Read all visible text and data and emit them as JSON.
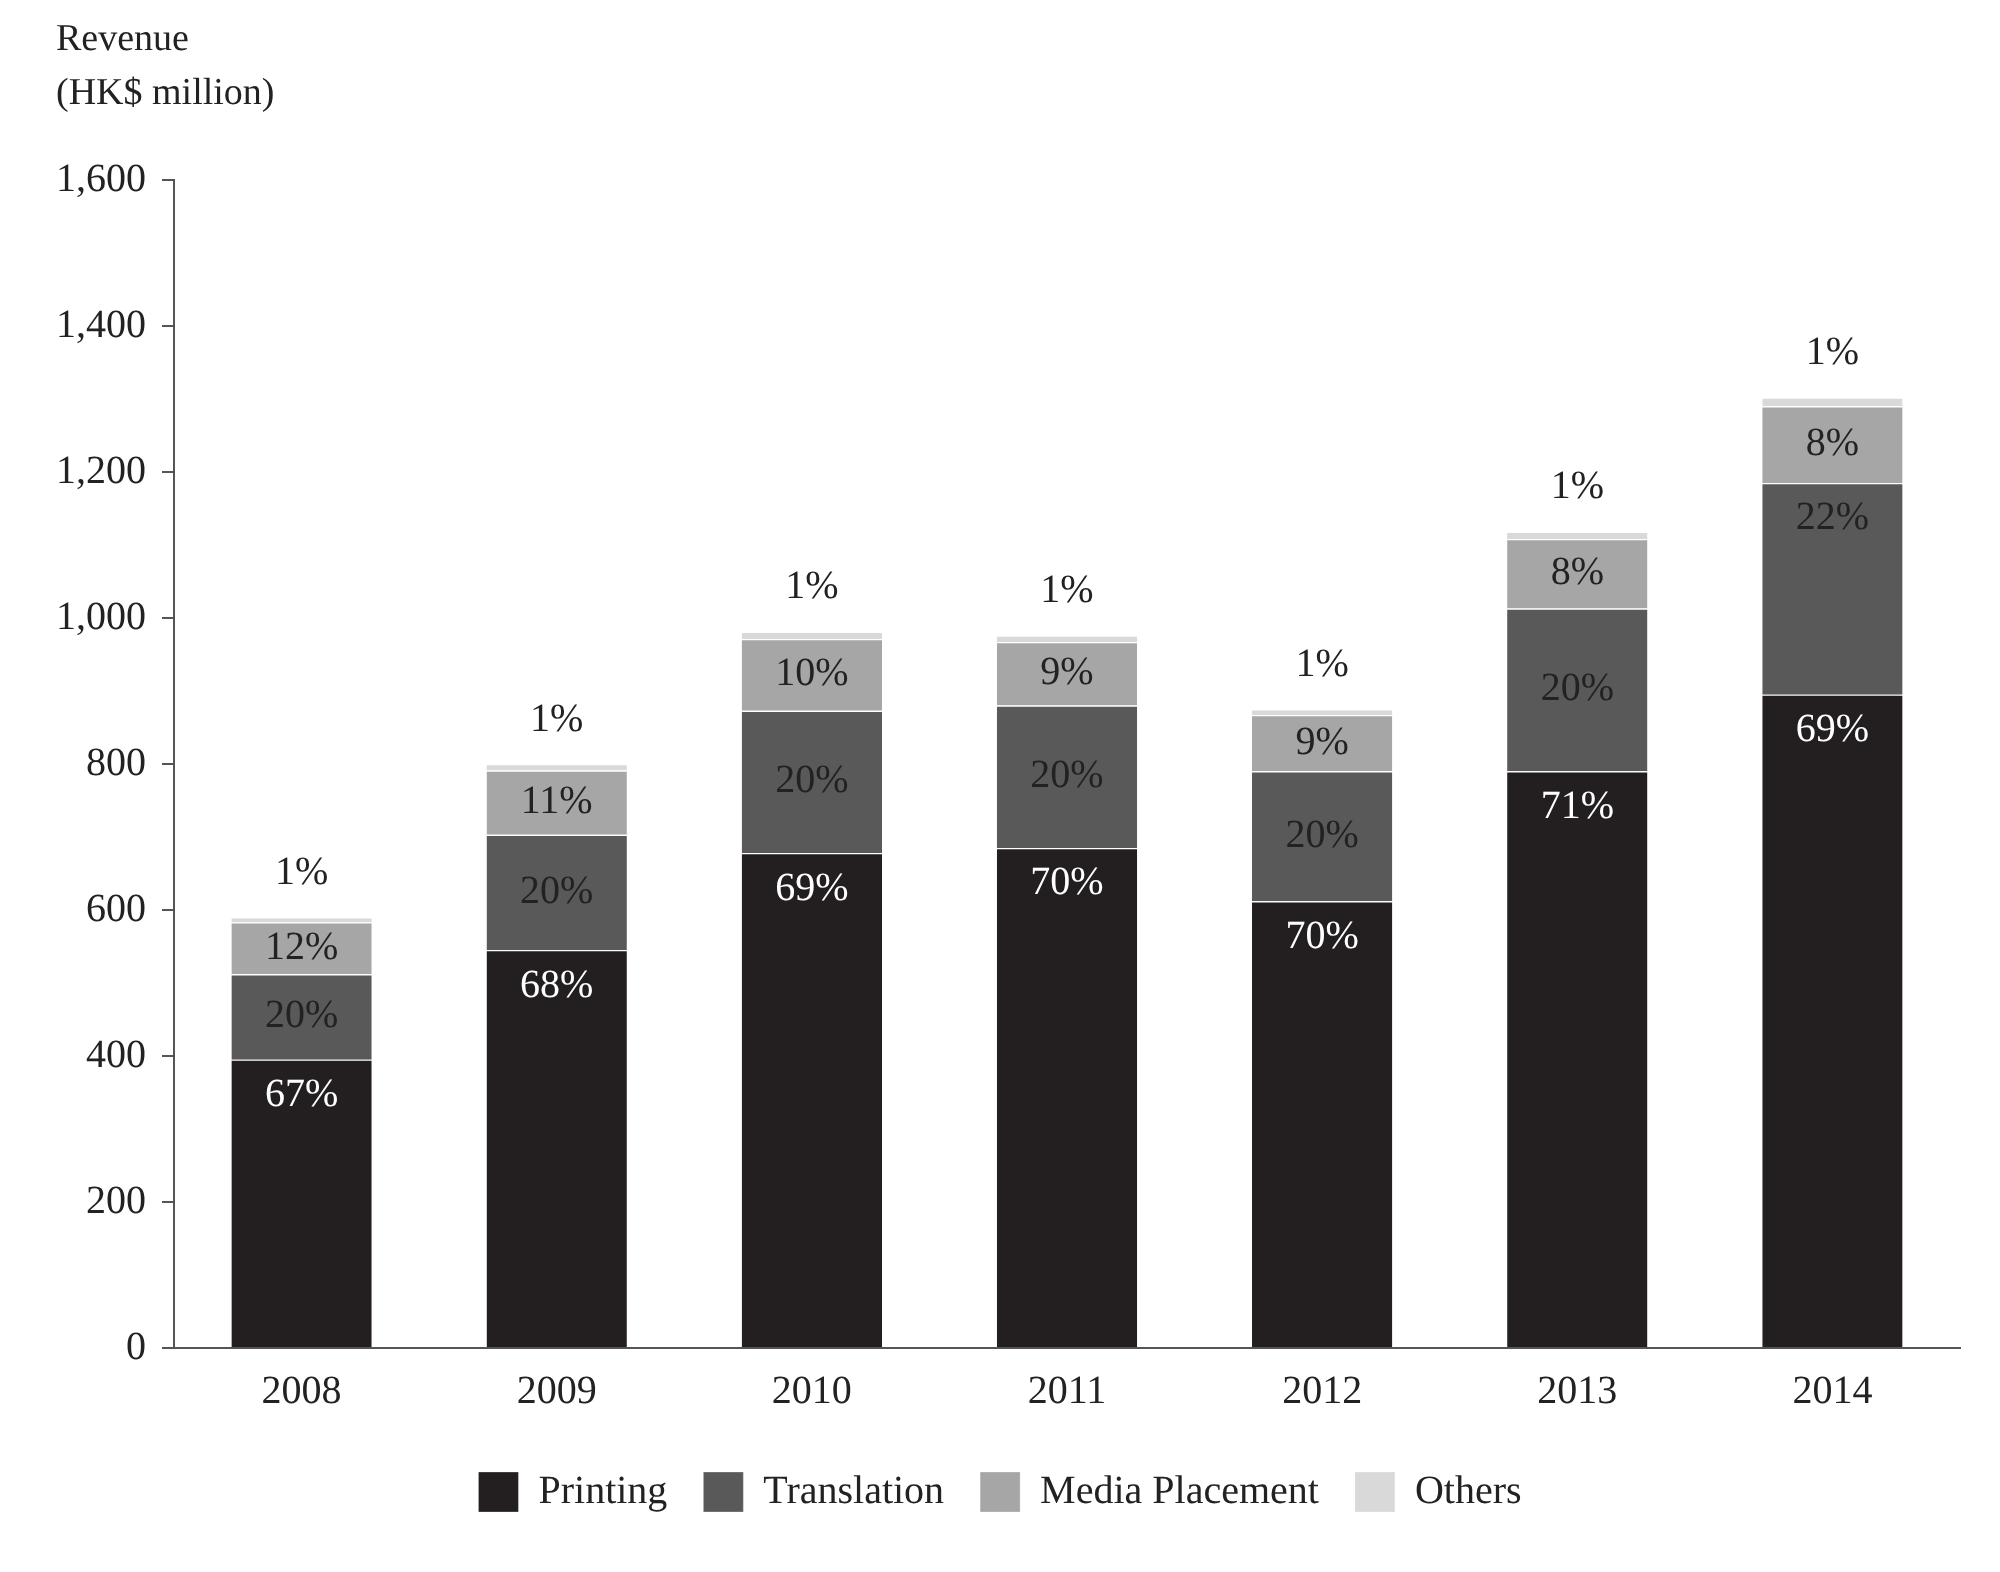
{
  "chart_data": {
    "type": "bar",
    "stacked": true,
    "ylabel": "Revenue\n(HK$ million)",
    "categories": [
      "2008",
      "2009",
      "2010",
      "2011",
      "2012",
      "2013",
      "2014"
    ],
    "series": [
      {
        "name": "Printing",
        "color": "#231f20",
        "values": [
          395,
          545,
          678,
          685,
          612,
          790,
          895
        ]
      },
      {
        "name": "Translation",
        "color": "#595959",
        "values": [
          117,
          158,
          195,
          195,
          178,
          223,
          290
        ]
      },
      {
        "name": "Media Placement",
        "color": "#a6a6a6",
        "values": [
          71,
          88,
          98,
          87,
          77,
          95,
          105
        ]
      },
      {
        "name": "Others",
        "color": "#d9d9d9",
        "values": [
          7,
          9,
          10,
          9,
          8,
          10,
          12
        ]
      }
    ],
    "annotations": [
      {
        "text": "67%",
        "x": "2008",
        "y": 395
      },
      {
        "text": "68%",
        "x": "2009",
        "y": 545
      },
      {
        "text": "69%",
        "x": "2010",
        "y": 678
      },
      {
        "text": "70%",
        "x": "2011",
        "y": 685
      },
      {
        "text": "70%",
        "x": "2012",
        "y": 612
      },
      {
        "text": "71%",
        "x": "2013",
        "y": 790
      },
      {
        "text": "69%",
        "x": "2014",
        "y": 895
      },
      {
        "text": "20%",
        "x": "2008",
        "y": 512
      },
      {
        "text": "20%",
        "x": "2009",
        "y": 703
      },
      {
        "text": "20%",
        "x": "2010",
        "y": 873
      },
      {
        "text": "20%",
        "x": "2011",
        "y": 880
      },
      {
        "text": "20%",
        "x": "2012",
        "y": 790
      },
      {
        "text": "20%",
        "x": "2013",
        "y": 1013
      },
      {
        "text": "22%",
        "x": "2014",
        "y": 1185
      },
      {
        "text": "12%",
        "x": "2008",
        "y": 583
      },
      {
        "text": "11%",
        "x": "2009",
        "y": 791
      },
      {
        "text": "10%",
        "x": "2010",
        "y": 971
      },
      {
        "text": "9%",
        "x": "2011",
        "y": 967
      },
      {
        "text": "9%",
        "x": "2012",
        "y": 867
      },
      {
        "text": "8%",
        "x": "2013",
        "y": 1108
      },
      {
        "text": "8%",
        "x": "2014",
        "y": 1290
      },
      {
        "text": "1%",
        "x": "2008",
        "y": 590
      },
      {
        "text": "1%",
        "x": "2009",
        "y": 800
      },
      {
        "text": "1%",
        "x": "2010",
        "y": 981
      },
      {
        "text": "1%",
        "x": "2011",
        "y": 976
      },
      {
        "text": "1%",
        "x": "2012",
        "y": 875
      },
      {
        "text": "1%",
        "x": "2013",
        "y": 1118
      },
      {
        "text": "1%",
        "x": "2014",
        "y": 1302
      }
    ],
    "ylim": [
      0,
      1600
    ],
    "yticks": [
      {
        "value": 0,
        "label": "0"
      },
      {
        "value": 200,
        "label": "200"
      },
      {
        "value": 400,
        "label": "400"
      },
      {
        "value": 600,
        "label": "600"
      },
      {
        "value": 800,
        "label": "800"
      },
      {
        "value": 1000,
        "label": "1,000"
      },
      {
        "value": 1200,
        "label": "1,200"
      },
      {
        "value": 1400,
        "label": "1,400"
      },
      {
        "value": 1600,
        "label": "1,600"
      }
    ],
    "grid": false,
    "legend": "bottom"
  }
}
